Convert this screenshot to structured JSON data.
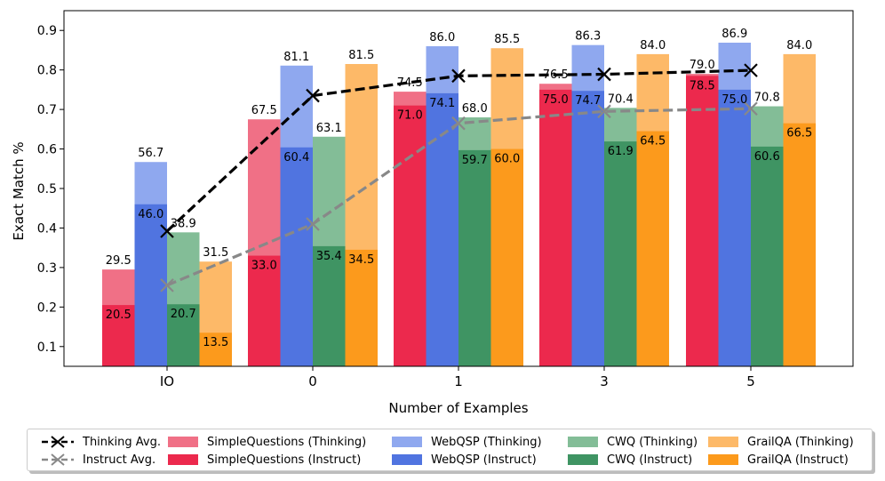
{
  "chart_data": {
    "type": "bar",
    "xlabel": "Number of Examples",
    "ylabel": "Exact Match %",
    "ylim": [
      0.05,
      0.95
    ],
    "yticks": [
      0.1,
      0.2,
      0.3,
      0.4,
      0.5,
      0.6,
      0.7,
      0.8,
      0.9
    ],
    "ytick_labels": [
      "0.1",
      "0.2",
      "0.3",
      "0.4",
      "0.5",
      "0.6",
      "0.7",
      "0.8",
      "0.9"
    ],
    "categories": [
      "IO",
      "0",
      "1",
      "3",
      "5"
    ],
    "datasets": [
      {
        "name": "SimpleQuestions",
        "thinking_color": "#f07086",
        "instruct_color": "#ec294d",
        "thinking": [
          0.295,
          0.675,
          0.745,
          0.765,
          0.79
        ],
        "instruct": [
          0.205,
          0.33,
          0.71,
          0.75,
          0.785
        ],
        "thinking_labels": [
          "29.5",
          "67.5",
          "74.5",
          "76.5",
          "79.0"
        ],
        "instruct_labels": [
          "20.5",
          "33.0",
          "71.0",
          "75.0",
          "78.5"
        ]
      },
      {
        "name": "WebQSP",
        "thinking_color": "#8fa8ef",
        "instruct_color": "#5074e0",
        "thinking": [
          0.567,
          0.811,
          0.86,
          0.863,
          0.869
        ],
        "instruct": [
          0.46,
          0.604,
          0.741,
          0.747,
          0.75
        ],
        "thinking_labels": [
          "56.7",
          "81.1",
          "86.0",
          "86.3",
          "86.9"
        ],
        "instruct_labels": [
          "46.0",
          "60.4",
          "74.1",
          "74.7",
          "75.0"
        ]
      },
      {
        "name": "CWQ",
        "thinking_color": "#83bd97",
        "instruct_color": "#3f9463",
        "thinking": [
          0.389,
          0.631,
          0.68,
          0.704,
          0.708
        ],
        "instruct": [
          0.207,
          0.354,
          0.597,
          0.619,
          0.606
        ],
        "thinking_labels": [
          "38.9",
          "63.1",
          "68.0",
          "70.4",
          "70.8"
        ],
        "instruct_labels": [
          "20.7",
          "35.4",
          "59.7",
          "61.9",
          "60.6"
        ]
      },
      {
        "name": "GrailQA",
        "thinking_color": "#fdb968",
        "instruct_color": "#fc9a1c",
        "thinking": [
          0.315,
          0.815,
          0.855,
          0.84,
          0.84
        ],
        "instruct": [
          0.135,
          0.345,
          0.6,
          0.645,
          0.665
        ],
        "thinking_labels": [
          "31.5",
          "81.5",
          "85.5",
          "84.0",
          "84.0"
        ],
        "instruct_labels": [
          "13.5",
          "34.5",
          "60.0",
          "64.5",
          "66.5"
        ]
      }
    ],
    "lines": [
      {
        "name": "Thinking Avg.",
        "color": "#000000",
        "values": [
          0.392,
          0.735,
          0.785,
          0.789,
          0.799
        ]
      },
      {
        "name": "Instruct Avg.",
        "color": "#888888",
        "values": [
          0.255,
          0.41,
          0.665,
          0.695,
          0.702
        ]
      }
    ]
  },
  "legend": {
    "thinking_avg": "Thinking Avg.",
    "instruct_avg": "Instruct Avg.",
    "sq_thinking": "SimpleQuestions (Thinking)",
    "sq_instruct": "SimpleQuestions (Instruct)",
    "webqsp_thinking": "WebQSP (Thinking)",
    "webqsp_instruct": "WebQSP (Instruct)",
    "cwq_thinking": "CWQ (Thinking)",
    "cwq_instruct": "CWQ (Instruct)",
    "grailqa_thinking": "GrailQA (Thinking)",
    "grailqa_instruct": "GrailQA (Instruct)"
  }
}
